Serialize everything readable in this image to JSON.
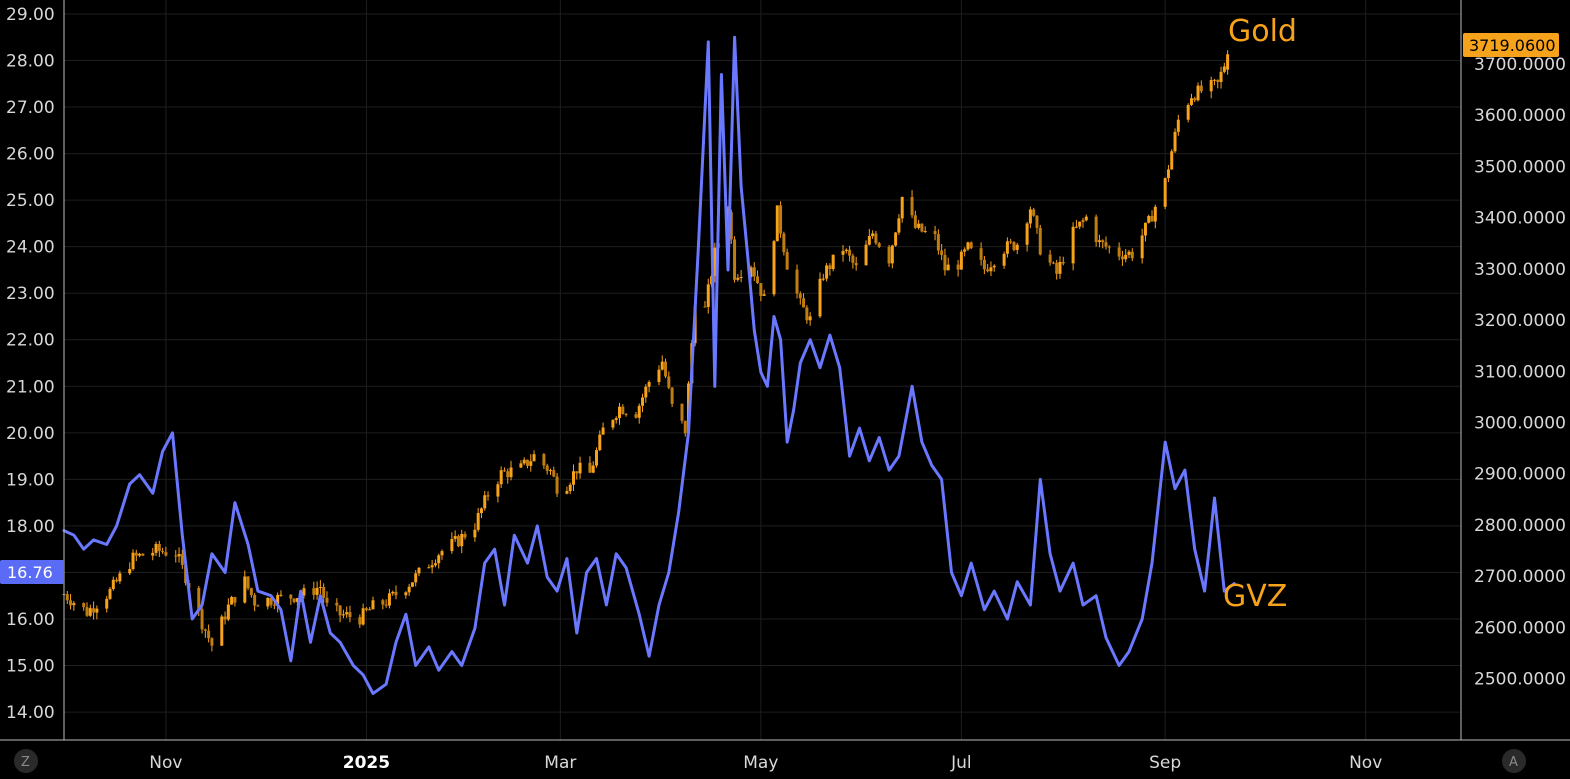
{
  "chart_data": {
    "type": "line",
    "left_axis": {
      "series": "GVZ",
      "ticks": [
        "29.00",
        "28.00",
        "27.00",
        "26.00",
        "25.00",
        "24.00",
        "23.00",
        "22.00",
        "21.00",
        "20.00",
        "19.00",
        "18.00",
        "17.00",
        "16.00",
        "15.00",
        "14.00"
      ],
      "range": [
        13.4,
        29.3
      ]
    },
    "right_axis": {
      "series": "Gold",
      "ticks": [
        "3700.0000",
        "3600.0000",
        "3500.0000",
        "3400.0000",
        "3300.0000",
        "3200.0000",
        "3100.0000",
        "3000.0000",
        "2900.0000",
        "2800.0000",
        "2700.0000",
        "2600.0000",
        "2500.0000"
      ],
      "range": [
        2380,
        3825
      ]
    },
    "x_axis": {
      "labels": [
        "Nov",
        "2025",
        "Mar",
        "May",
        "Jul",
        "Sep",
        "Nov"
      ],
      "range": [
        "2024-10-01",
        "2025-11-30"
      ]
    },
    "gold_label": "Gold",
    "gvz_label": "GVZ",
    "gold_last_badge": "3719.0600",
    "gvz_last_badge": "16.76",
    "colors": {
      "gold": "#f7a21b",
      "gvz": "#6a78ff",
      "badge_gvz_bg": "#5a6cf5",
      "badge_gold_bg": "#f7a21b",
      "grid": "#1e1e1e"
    },
    "series": [
      {
        "name": "GVZ",
        "axis": "left",
        "kind": "line",
        "points": [
          [
            "2024-10-01",
            17.9
          ],
          [
            "2024-10-04",
            17.8
          ],
          [
            "2024-10-07",
            17.5
          ],
          [
            "2024-10-10",
            17.7
          ],
          [
            "2024-10-14",
            17.6
          ],
          [
            "2024-10-17",
            18.0
          ],
          [
            "2024-10-21",
            18.9
          ],
          [
            "2024-10-24",
            19.1
          ],
          [
            "2024-10-28",
            18.7
          ],
          [
            "2024-10-31",
            19.6
          ],
          [
            "2024-11-03",
            20.0
          ],
          [
            "2024-11-06",
            17.8
          ],
          [
            "2024-11-09",
            16.0
          ],
          [
            "2024-11-12",
            16.3
          ],
          [
            "2024-11-15",
            17.4
          ],
          [
            "2024-11-19",
            17.0
          ],
          [
            "2024-11-22",
            18.5
          ],
          [
            "2024-11-26",
            17.6
          ],
          [
            "2024-11-29",
            16.6
          ],
          [
            "2024-12-03",
            16.5
          ],
          [
            "2024-12-06",
            16.2
          ],
          [
            "2024-12-09",
            15.1
          ],
          [
            "2024-12-12",
            16.6
          ],
          [
            "2024-12-15",
            15.5
          ],
          [
            "2024-12-18",
            16.5
          ],
          [
            "2024-12-21",
            15.7
          ],
          [
            "2024-12-24",
            15.5
          ],
          [
            "2024-12-28",
            15.0
          ],
          [
            "2024-12-31",
            14.8
          ],
          [
            "2025-01-03",
            14.4
          ],
          [
            "2025-01-07",
            14.6
          ],
          [
            "2025-01-10",
            15.5
          ],
          [
            "2025-01-13",
            16.1
          ],
          [
            "2025-01-16",
            15.0
          ],
          [
            "2025-01-20",
            15.4
          ],
          [
            "2025-01-23",
            14.9
          ],
          [
            "2025-01-27",
            15.3
          ],
          [
            "2025-01-30",
            15.0
          ],
          [
            "2025-02-03",
            15.8
          ],
          [
            "2025-02-06",
            17.2
          ],
          [
            "2025-02-09",
            17.5
          ],
          [
            "2025-02-12",
            16.3
          ],
          [
            "2025-02-15",
            17.8
          ],
          [
            "2025-02-19",
            17.2
          ],
          [
            "2025-02-22",
            18.0
          ],
          [
            "2025-02-25",
            16.9
          ],
          [
            "2025-02-28",
            16.6
          ],
          [
            "2025-03-03",
            17.3
          ],
          [
            "2025-03-06",
            15.7
          ],
          [
            "2025-03-09",
            17.0
          ],
          [
            "2025-03-12",
            17.3
          ],
          [
            "2025-03-15",
            16.3
          ],
          [
            "2025-03-18",
            17.4
          ],
          [
            "2025-03-21",
            17.1
          ],
          [
            "2025-03-25",
            16.1
          ],
          [
            "2025-03-28",
            15.2
          ],
          [
            "2025-03-31",
            16.3
          ],
          [
            "2025-04-03",
            17.0
          ],
          [
            "2025-04-06",
            18.3
          ],
          [
            "2025-04-09",
            20.0
          ],
          [
            "2025-04-12",
            24.0
          ],
          [
            "2025-04-15",
            28.4
          ],
          [
            "2025-04-17",
            21.0
          ],
          [
            "2025-04-19",
            27.7
          ],
          [
            "2025-04-21",
            23.5
          ],
          [
            "2025-04-23",
            28.5
          ],
          [
            "2025-04-25",
            25.3
          ],
          [
            "2025-04-27",
            23.8
          ],
          [
            "2025-04-29",
            22.2
          ],
          [
            "2025-05-01",
            21.3
          ],
          [
            "2025-05-03",
            21.0
          ],
          [
            "2025-05-05",
            22.5
          ],
          [
            "2025-05-07",
            22.0
          ],
          [
            "2025-05-09",
            19.8
          ],
          [
            "2025-05-11",
            20.5
          ],
          [
            "2025-05-13",
            21.5
          ],
          [
            "2025-05-16",
            22.0
          ],
          [
            "2025-05-19",
            21.4
          ],
          [
            "2025-05-22",
            22.1
          ],
          [
            "2025-05-25",
            21.4
          ],
          [
            "2025-05-28",
            19.5
          ],
          [
            "2025-05-31",
            20.1
          ],
          [
            "2025-06-03",
            19.4
          ],
          [
            "2025-06-06",
            19.9
          ],
          [
            "2025-06-09",
            19.2
          ],
          [
            "2025-06-12",
            19.5
          ],
          [
            "2025-06-16",
            21.0
          ],
          [
            "2025-06-19",
            19.8
          ],
          [
            "2025-06-22",
            19.3
          ],
          [
            "2025-06-25",
            19.0
          ],
          [
            "2025-06-28",
            17.0
          ],
          [
            "2025-07-01",
            16.5
          ],
          [
            "2025-07-04",
            17.2
          ],
          [
            "2025-07-08",
            16.2
          ],
          [
            "2025-07-11",
            16.6
          ],
          [
            "2025-07-15",
            16.0
          ],
          [
            "2025-07-18",
            16.8
          ],
          [
            "2025-07-22",
            16.3
          ],
          [
            "2025-07-25",
            19.0
          ],
          [
            "2025-07-28",
            17.4
          ],
          [
            "2025-07-31",
            16.6
          ],
          [
            "2025-08-04",
            17.2
          ],
          [
            "2025-08-07",
            16.3
          ],
          [
            "2025-08-11",
            16.5
          ],
          [
            "2025-08-14",
            15.6
          ],
          [
            "2025-08-18",
            15.0
          ],
          [
            "2025-08-21",
            15.3
          ],
          [
            "2025-08-25",
            16.0
          ],
          [
            "2025-08-28",
            17.2
          ],
          [
            "2025-09-01",
            19.8
          ],
          [
            "2025-09-04",
            18.8
          ],
          [
            "2025-09-07",
            19.2
          ],
          [
            "2025-09-10",
            17.5
          ],
          [
            "2025-09-13",
            16.6
          ],
          [
            "2025-09-16",
            18.6
          ],
          [
            "2025-09-19",
            16.6
          ],
          [
            "2025-09-22",
            16.76
          ]
        ]
      },
      {
        "name": "Gold",
        "axis": "right",
        "kind": "candlestick",
        "points": [
          [
            "2024-10-01",
            2665
          ],
          [
            "2024-10-08",
            2630
          ],
          [
            "2024-10-15",
            2670
          ],
          [
            "2024-10-22",
            2735
          ],
          [
            "2024-10-29",
            2750
          ],
          [
            "2024-11-04",
            2745
          ],
          [
            "2024-11-08",
            2685
          ],
          [
            "2024-11-12",
            2610
          ],
          [
            "2024-11-15",
            2565
          ],
          [
            "2024-11-20",
            2640
          ],
          [
            "2024-11-25",
            2690
          ],
          [
            "2024-11-28",
            2650
          ],
          [
            "2024-12-03",
            2655
          ],
          [
            "2024-12-09",
            2660
          ],
          [
            "2024-12-13",
            2665
          ],
          [
            "2024-12-18",
            2680
          ],
          [
            "2024-12-20",
            2640
          ],
          [
            "2024-12-24",
            2625
          ],
          [
            "2024-12-30",
            2618
          ],
          [
            "2025-01-03",
            2640
          ],
          [
            "2025-01-07",
            2650
          ],
          [
            "2025-01-13",
            2680
          ],
          [
            "2025-01-17",
            2705
          ],
          [
            "2025-01-23",
            2745
          ],
          [
            "2025-01-29",
            2770
          ],
          [
            "2025-02-03",
            2800
          ],
          [
            "2025-02-07",
            2860
          ],
          [
            "2025-02-11",
            2900
          ],
          [
            "2025-02-17",
            2910
          ],
          [
            "2025-02-21",
            2935
          ],
          [
            "2025-02-26",
            2905
          ],
          [
            "2025-03-01",
            2860
          ],
          [
            "2025-03-06",
            2910
          ],
          [
            "2025-03-10",
            2900
          ],
          [
            "2025-03-14",
            2985
          ],
          [
            "2025-03-19",
            3030
          ],
          [
            "2025-03-24",
            3020
          ],
          [
            "2025-03-28",
            3080
          ],
          [
            "2025-04-01",
            3120
          ],
          [
            "2025-04-04",
            3030
          ],
          [
            "2025-04-08",
            2985
          ],
          [
            "2025-04-11",
            3240
          ],
          [
            "2025-04-14",
            3220
          ],
          [
            "2025-04-17",
            3330
          ],
          [
            "2025-04-21",
            3420
          ],
          [
            "2025-04-23",
            3290
          ],
          [
            "2025-04-28",
            3310
          ],
          [
            "2025-05-02",
            3240
          ],
          [
            "2025-05-06",
            3410
          ],
          [
            "2025-05-09",
            3310
          ],
          [
            "2025-05-13",
            3230
          ],
          [
            "2025-05-16",
            3200
          ],
          [
            "2025-05-20",
            3290
          ],
          [
            "2025-05-26",
            3340
          ],
          [
            "2025-05-30",
            3300
          ],
          [
            "2025-06-04",
            3370
          ],
          [
            "2025-06-09",
            3320
          ],
          [
            "2025-06-13",
            3440
          ],
          [
            "2025-06-17",
            3380
          ],
          [
            "2025-06-23",
            3360
          ],
          [
            "2025-06-26",
            3300
          ],
          [
            "2025-06-30",
            3310
          ],
          [
            "2025-07-03",
            3340
          ],
          [
            "2025-07-08",
            3300
          ],
          [
            "2025-07-14",
            3340
          ],
          [
            "2025-07-18",
            3350
          ],
          [
            "2025-07-22",
            3420
          ],
          [
            "2025-07-25",
            3340
          ],
          [
            "2025-07-30",
            3290
          ],
          [
            "2025-08-04",
            3370
          ],
          [
            "2025-08-08",
            3400
          ],
          [
            "2025-08-12",
            3350
          ],
          [
            "2025-08-18",
            3330
          ],
          [
            "2025-08-22",
            3330
          ],
          [
            "2025-08-27",
            3390
          ],
          [
            "2025-09-01",
            3470
          ],
          [
            "2025-09-05",
            3590
          ],
          [
            "2025-09-09",
            3640
          ],
          [
            "2025-09-13",
            3650
          ],
          [
            "2025-09-17",
            3660
          ],
          [
            "2025-09-20",
            3719.06
          ]
        ]
      }
    ]
  },
  "footer": {
    "left_corner": "Z",
    "right_corner": "A"
  }
}
